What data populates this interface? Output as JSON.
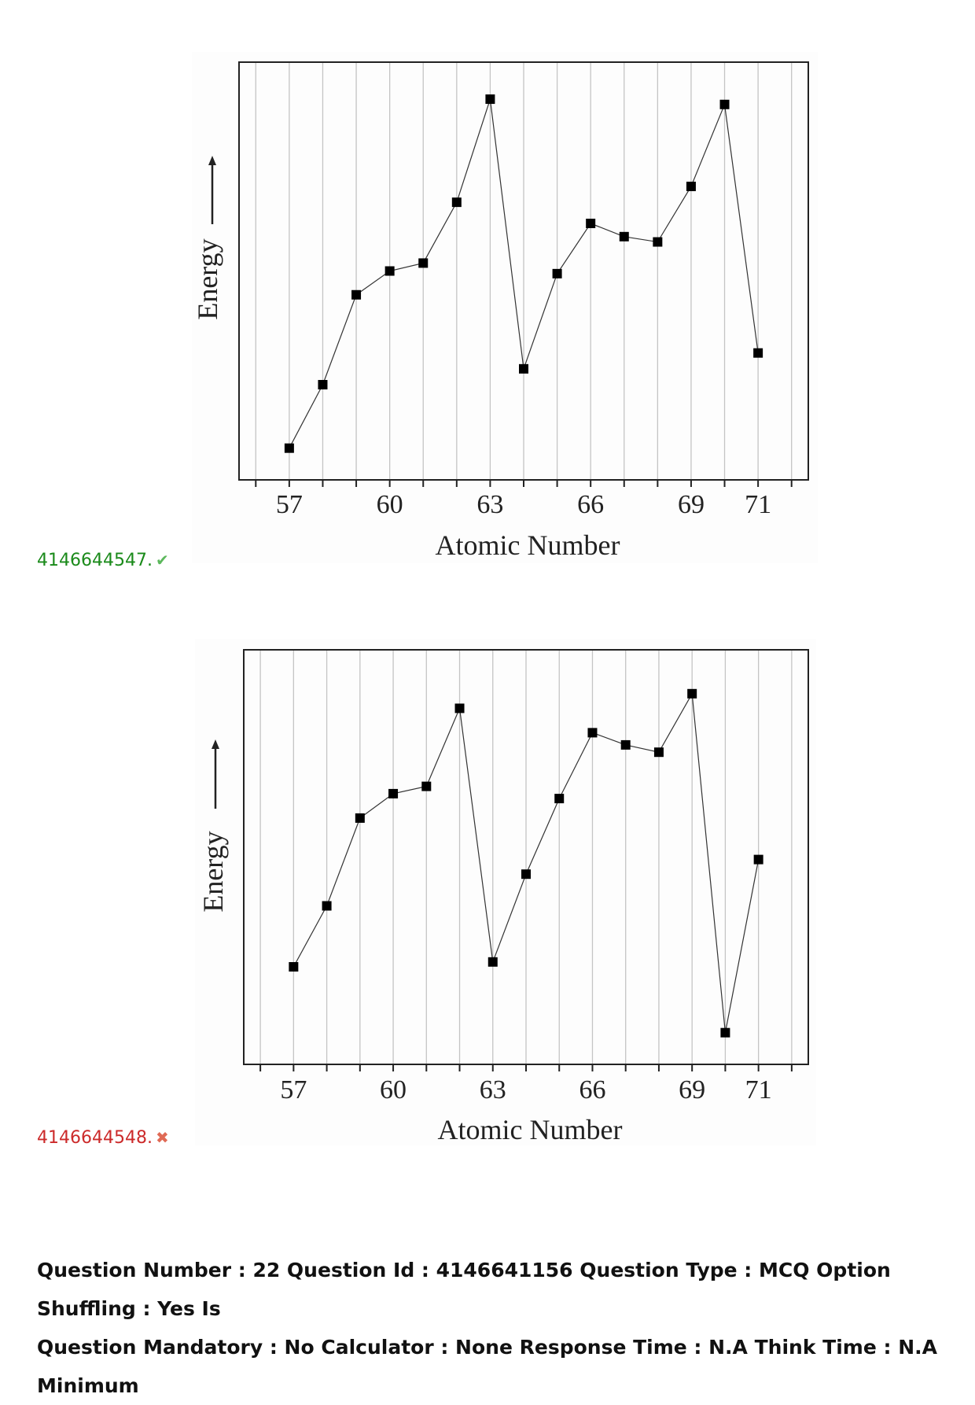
{
  "options": [
    {
      "id_label": "4146644547.",
      "status_icon": "check-icon",
      "status_color": "#5cb85c",
      "chart_data": {
        "type": "line",
        "x": [
          57,
          58,
          59,
          60,
          61,
          62,
          63,
          64,
          65,
          66,
          67,
          68,
          69,
          70,
          71
        ],
        "y": [
          4,
          28,
          62,
          71,
          74,
          97,
          136,
          34,
          70,
          89,
          84,
          82,
          103,
          134,
          40
        ],
        "xlabel": "Atomic Number",
        "ylabel": "Energy",
        "ylabel_arrow": true,
        "x_tick_labels": [
          "57",
          "60",
          "63",
          "66",
          "69",
          "71"
        ],
        "x_tick_label_values": [
          57,
          60,
          63,
          66,
          69,
          71
        ],
        "xlim": [
          55.5,
          72.5
        ],
        "ylim": [
          -8,
          150
        ],
        "grid": "vertical",
        "marker": "square"
      }
    },
    {
      "id_label": "4146644548.",
      "status_icon": "cross-icon",
      "status_color": "#e06a55",
      "chart_data": {
        "type": "line",
        "x": [
          57,
          58,
          59,
          60,
          61,
          62,
          63,
          64,
          65,
          66,
          67,
          68,
          69,
          70,
          71
        ],
        "y": [
          38,
          63,
          99,
          109,
          112,
          144,
          40,
          76,
          107,
          134,
          129,
          126,
          150,
          11,
          82
        ],
        "xlabel": "Atomic Number",
        "ylabel": "Energy",
        "ylabel_arrow": true,
        "x_tick_labels": [
          "57",
          "60",
          "63",
          "66",
          "69",
          "71"
        ],
        "x_tick_label_values": [
          57,
          60,
          63,
          66,
          69,
          71
        ],
        "xlim": [
          55.5,
          72.5
        ],
        "ylim": [
          -2,
          168
        ],
        "grid": "vertical",
        "marker": "square"
      }
    }
  ],
  "question_meta": {
    "line1": "Question Number : 22 Question Id : 4146641156 Question Type : MCQ Option Shuffling : Yes Is",
    "line2": "Question Mandatory : No Calculator : None Response Time : N.A Think Time : N.A Minimum"
  }
}
